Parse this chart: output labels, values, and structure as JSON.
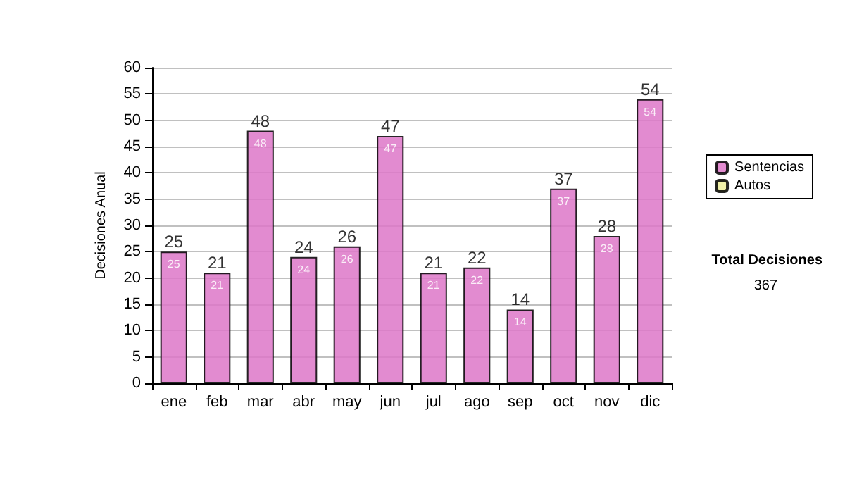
{
  "chart_data": {
    "type": "bar",
    "ylabel": "Decisiones Anual",
    "categories": [
      "ene",
      "feb",
      "mar",
      "abr",
      "may",
      "jun",
      "jul",
      "ago",
      "sep",
      "oct",
      "nov",
      "dic"
    ],
    "series": [
      {
        "name": "Sentencias",
        "color": "#dd77c8",
        "values": [
          25,
          21,
          48,
          24,
          26,
          47,
          21,
          22,
          14,
          37,
          28,
          54
        ]
      },
      {
        "name": "Autos",
        "color": "#eeee99",
        "values": [
          null,
          null,
          null,
          null,
          null,
          null,
          null,
          null,
          null,
          null,
          null,
          null
        ]
      }
    ],
    "stacked": true,
    "data_labels": true,
    "totals": [
      "25",
      "21",
      "48",
      "24",
      "26",
      "47",
      "21",
      "22",
      "14",
      "37",
      "28",
      "54"
    ],
    "ylim": [
      0,
      60
    ],
    "yticks": [
      0,
      5,
      10,
      15,
      20,
      25,
      30,
      35,
      40,
      45,
      50,
      55,
      60
    ],
    "grid": "y",
    "legend": "right",
    "annotations": [
      "Total Decisiones",
      "367"
    ]
  }
}
